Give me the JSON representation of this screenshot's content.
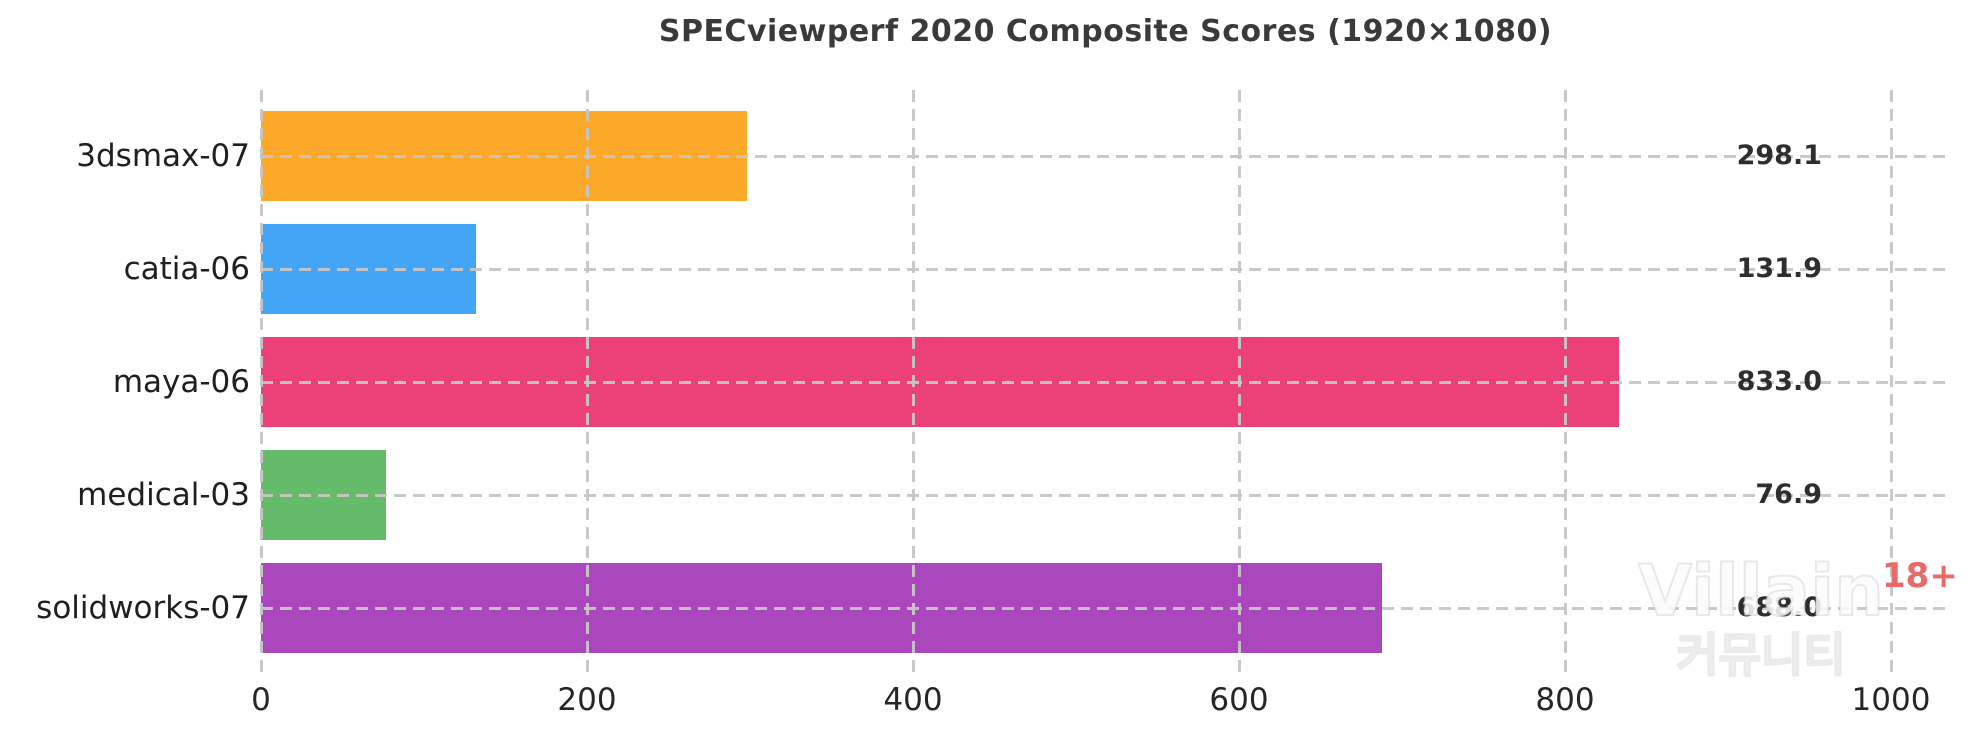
{
  "title": "SPECviewperf 2020 Composite Scores (1920×1080)",
  "chart_data": {
    "type": "bar",
    "orientation": "horizontal",
    "title": "SPECviewperf 2020 Composite Scores (1920×1080)",
    "xlabel": "",
    "ylabel": "",
    "categories": [
      "3dsmax-07",
      "catia-06",
      "maya-06",
      "medical-03",
      "solidworks-07"
    ],
    "values": [
      298.1,
      131.9,
      833.0,
      76.9,
      688.0
    ],
    "value_labels": [
      "298.1",
      "131.9",
      "833.0",
      "76.9",
      "688.0"
    ],
    "bar_colors": [
      "#FCA828",
      "#42A5F5",
      "#EC4078",
      "#66BB6A",
      "#AB47BC"
    ],
    "xticks": [
      0,
      200,
      400,
      600,
      800,
      1000
    ],
    "xtick_labels": [
      "0",
      "200",
      "400",
      "600",
      "800",
      "1000"
    ],
    "xlim": [
      0,
      1035
    ],
    "grid": "dashed gray, vertical at x-ticks and horizontal at each bar center, drawn on top of bars",
    "legend": "none",
    "grid_color": "#C6C6C6",
    "text_color": "#262626",
    "title_color": "#3A3A3A"
  },
  "watermark": {
    "line1": "Villain",
    "line2": "커뮤니티",
    "badge": "18+",
    "badge_color": "#E96A6A"
  }
}
